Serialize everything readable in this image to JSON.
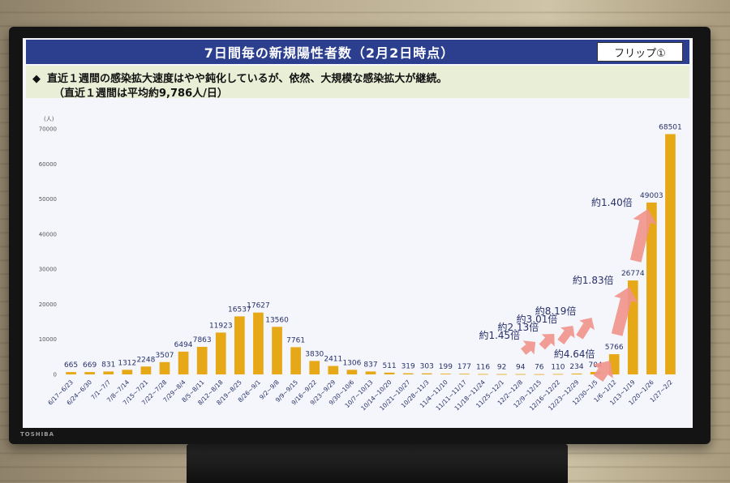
{
  "slide": {
    "title": "7日間毎の新規陽性者数（2月2日時点）",
    "flip_label": "フリップ①",
    "note_bullet": "◆",
    "note_line1": "直近１週間の感染拡大速度はやや鈍化しているが、依然、大規模な感染拡大が継続。",
    "note_line2": "（直近１週間は平均約9,786人/日）"
  },
  "tv": {
    "brand": "TOSHIBA"
  },
  "chart_data": {
    "type": "bar",
    "ylabel": "(人)",
    "ylim": [
      0,
      70000
    ],
    "yticks": [
      0,
      10000,
      20000,
      30000,
      40000,
      50000,
      60000,
      70000
    ],
    "bar_color": "#e6a817",
    "categories": [
      "6/17~6/23",
      "6/24~6/30",
      "7/1~7/7",
      "7/8~7/14",
      "7/15~7/21",
      "7/22~7/28",
      "7/29~8/4",
      "8/5~8/11",
      "8/12~8/18",
      "8/19~8/25",
      "8/26~9/1",
      "9/2~9/8",
      "9/9~9/15",
      "9/16~9/22",
      "9/23~9/29",
      "9/30~10/6",
      "10/7~10/13",
      "10/14~10/20",
      "10/21~10/27",
      "10/28~11/3",
      "11/4~11/10",
      "11/11~11/17",
      "11/18~11/24",
      "11/25~12/1",
      "12/2~12/8",
      "12/9~12/15",
      "12/16~12/22",
      "12/23~12/29",
      "12/30~1/5",
      "1/6~1/12",
      "1/13~1/19",
      "1/20~1/26",
      "1/27~2/2"
    ],
    "values": [
      665,
      669,
      831,
      1312,
      2248,
      3507,
      6494,
      7863,
      11923,
      16537,
      17627,
      13560,
      7761,
      3830,
      2411,
      1306,
      837,
      511,
      319,
      303,
      199,
      177,
      116,
      92,
      94,
      76,
      110,
      234,
      704,
      5766,
      26774,
      49003,
      68501
    ],
    "annotations": [
      {
        "text": "約1.45倍",
        "from": 24,
        "to": 25
      },
      {
        "text": "約2.13倍",
        "from": 25,
        "to": 26
      },
      {
        "text": "約3.01倍",
        "from": 26,
        "to": 27
      },
      {
        "text": "約8.19倍",
        "from": 27,
        "to": 28
      },
      {
        "text": "約4.64倍",
        "from": 28,
        "to": 29
      },
      {
        "text": "約1.83倍",
        "from": 29,
        "to": 30
      },
      {
        "text": "約1.40倍",
        "from": 30,
        "to": 31
      }
    ]
  }
}
